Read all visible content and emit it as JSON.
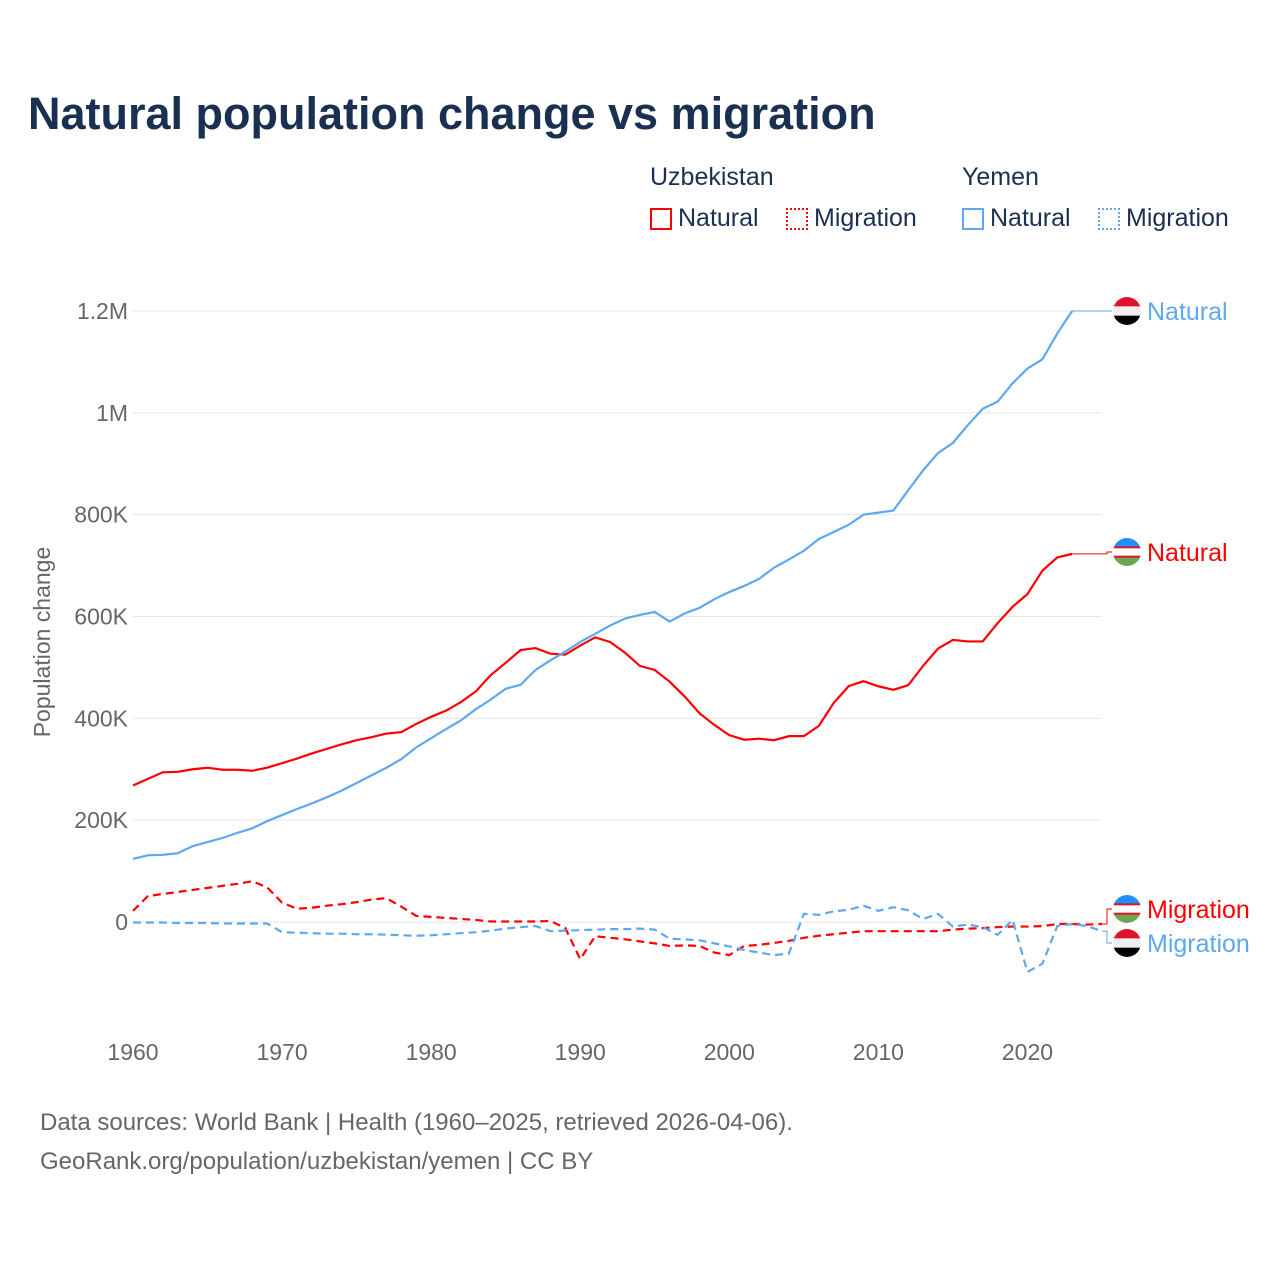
{
  "title": "Natural population change vs migration",
  "legend": {
    "groups": [
      {
        "country": "Uzbekistan",
        "items": [
          {
            "label": "Natural",
            "color": "#ff0000",
            "style": "solid"
          },
          {
            "label": "Migration",
            "color": "#ff0000",
            "style": "dotted"
          }
        ]
      },
      {
        "country": "Yemen",
        "items": [
          {
            "label": "Natural",
            "color": "#5ea8ef",
            "style": "solid"
          },
          {
            "label": "Migration",
            "color": "#5ea8ef",
            "style": "dotted"
          }
        ]
      }
    ]
  },
  "footer": {
    "line1": "Data sources: World Bank | Health (1960–2025, retrieved 2026-04-06).",
    "line2": "GeoRank.org/population/uzbekistan/yemen | CC BY"
  },
  "chart_data": {
    "type": "line",
    "title": "Natural population change vs migration",
    "xlabel": "",
    "ylabel": "Population change",
    "xlim": [
      1960,
      2025
    ],
    "ylim": [
      -150000,
      1200000
    ],
    "x_ticks": [
      1960,
      1970,
      1980,
      1990,
      2000,
      2010,
      2020
    ],
    "x_tick_labels": [
      "1960",
      "1970",
      "1980",
      "1990",
      "2000",
      "2010",
      "2020"
    ],
    "y_ticks": [
      0,
      200000,
      400000,
      600000,
      800000,
      1000000,
      1200000
    ],
    "y_tick_labels": [
      "0",
      "200K",
      "400K",
      "600K",
      "800K",
      "1M",
      "1.2M"
    ],
    "grid": true,
    "x_start": 1960,
    "series": [
      {
        "name": "Uzbekistan Natural",
        "end_label": "Natural",
        "color": "#ff0000",
        "dash": false,
        "unit": "thousands",
        "values": [
          268,
          281,
          294,
          295,
          300,
          303,
          299,
          299,
          297,
          303,
          312,
          321,
          331,
          340,
          349,
          357,
          363,
          370,
          373,
          389,
          403,
          415,
          432,
          453,
          485,
          509,
          534,
          538,
          527,
          525,
          543,
          559,
          550,
          529,
          503,
          495,
          472,
          443,
          410,
          387,
          367,
          358,
          360,
          357,
          365,
          365,
          385,
          430,
          463,
          473,
          463,
          456,
          465,
          503,
          537,
          554,
          551,
          551,
          587,
          619,
          644,
          690,
          716,
          723
        ]
      },
      {
        "name": "Uzbekistan Migration",
        "end_label": "Migration",
        "color": "#ff0000",
        "dash": true,
        "unit": "thousands",
        "values": [
          22,
          51,
          55,
          59,
          63,
          67,
          71,
          75,
          80,
          68,
          38,
          26,
          28,
          32,
          35,
          39,
          44,
          47,
          30,
          12,
          10,
          8,
          6,
          4,
          1,
          1,
          1,
          1,
          2,
          -12,
          -73,
          -28,
          -31,
          -34,
          -38,
          -42,
          -47,
          -46,
          -47,
          -60,
          -65,
          -47,
          -45,
          -41,
          -37,
          -31,
          -27,
          -24,
          -21,
          -18,
          -18,
          -18,
          -18,
          -18,
          -18,
          -15,
          -13,
          -12,
          -10,
          -9,
          -9,
          -8,
          -4,
          -4,
          -5,
          -4
        ]
      },
      {
        "name": "Yemen Natural",
        "end_label": "Natural",
        "color": "#5ea8ef",
        "dash": false,
        "unit": "thousands",
        "values": [
          124,
          131,
          132,
          135,
          149,
          157,
          165,
          175,
          184,
          198,
          210,
          222,
          233,
          245,
          258,
          273,
          288,
          303,
          320,
          343,
          361,
          379,
          396,
          418,
          437,
          458,
          466,
          495,
          514,
          531,
          550,
          566,
          582,
          596,
          603,
          609,
          590,
          606,
          617,
          634,
          648,
          660,
          674,
          696,
          712,
          729,
          752,
          766,
          780,
          800,
          804,
          808,
          848,
          887,
          921,
          941,
          976,
          1008,
          1022,
          1058,
          1087,
          1105,
          1156,
          1200
        ]
      },
      {
        "name": "Yemen Migration",
        "end_label": "Migration",
        "color": "#5ea8ef",
        "dash": true,
        "unit": "thousands",
        "values": [
          -1,
          -1,
          -1,
          -2,
          -2,
          -2,
          -3,
          -3,
          -3,
          -3,
          -20,
          -21,
          -22,
          -23,
          -23,
          -24,
          -24,
          -25,
          -26,
          -27,
          -26,
          -24,
          -22,
          -20,
          -17,
          -13,
          -10,
          -8,
          -18,
          -17,
          -16,
          -15,
          -14,
          -14,
          -13,
          -15,
          -33,
          -34,
          -36,
          -42,
          -48,
          -55,
          -60,
          -65,
          -62,
          16,
          14,
          21,
          24,
          32,
          22,
          29,
          23,
          6,
          16,
          -9,
          -5,
          -10,
          -25,
          4,
          -98,
          -82,
          -8,
          -4,
          -8,
          -18
        ]
      }
    ]
  }
}
